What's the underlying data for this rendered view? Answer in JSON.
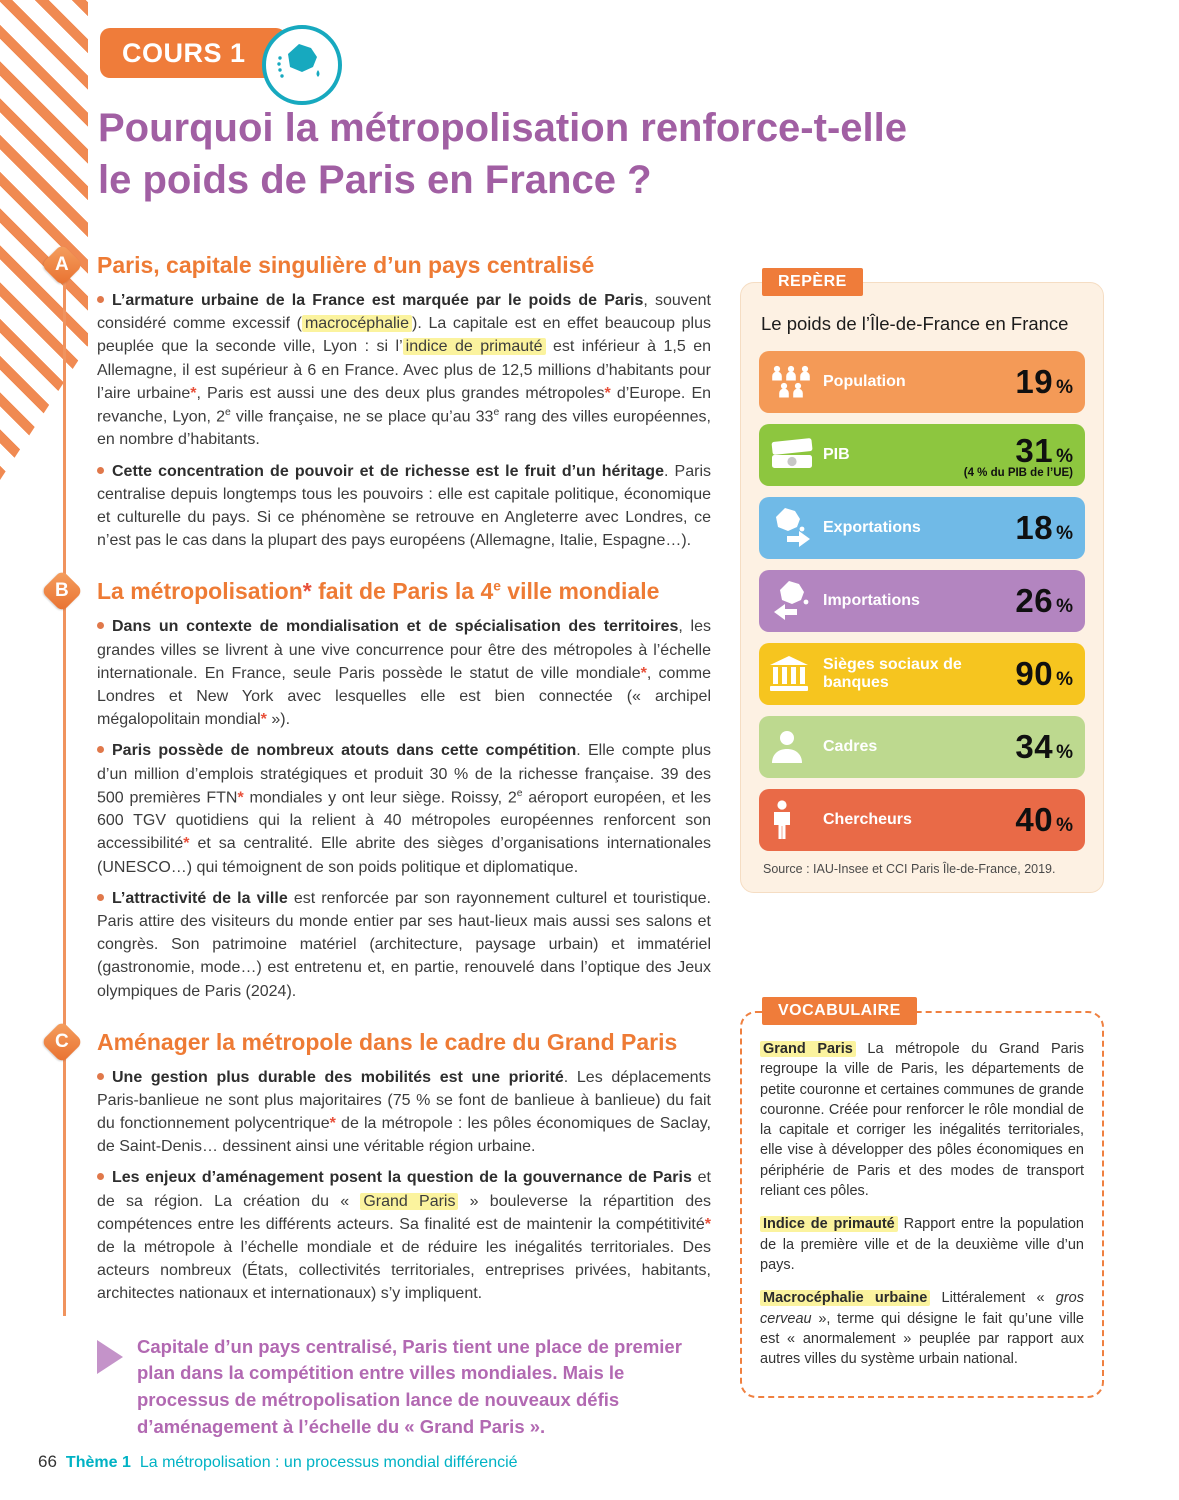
{
  "page": {
    "badge": "COURS 1",
    "title_html": "Pourquoi la métropolisation renforce-t-elle<br>le poids de Paris en France ?",
    "accent_orange": "#ee7b35",
    "title_purple": "#a15fa3",
    "highlight_yellow": "#fbf39e",
    "teal": "#00b2c4"
  },
  "sections": [
    {
      "letter": "A",
      "heading": "Paris, capitale singulière d’un pays centralisé",
      "paragraphs": [
        "<b>L’armature urbaine de la France est marquée par le poids de Paris</b>, souvent considéré comme excessif (<span class='hl'>macrocéphalie</span>). La capitale est en effet beaucoup plus peuplée que la seconde ville, Lyon : si l’<span class='hl'>indice de primauté</span> est inférieur à 1,5 en Allemagne, il est supérieur à 6 en France. Avec plus de 12,5 millions d’habitants pour l’aire urbaine<span class='ast'>*</span>, Paris est aussi une des deux plus grandes métropoles<span class='ast'>*</span> d’Europe. En revanche, Lyon, 2<sup>e</sup> ville française, ne se place qu’au 33<sup>e</sup> rang des villes européennes, en nombre d’habitants.",
        "<b>Cette concentration de pouvoir et de richesse est le fruit d’un héritage</b>. Paris centralise depuis longtemps tous les pouvoirs : elle est capitale politique, économique et culturelle du pays. Si ce phénomène se retrouve en Angleterre avec Londres, ce n’est pas le cas dans la plupart des pays européens (Allemagne, Italie, Espagne…)."
      ]
    },
    {
      "letter": "B",
      "heading": "La métropolisation<span class='ast'>*</span> fait de Paris la 4<sup>e</sup> ville mondiale",
      "paragraphs": [
        "<b>Dans un contexte de mondialisation et de spécialisation des territoires</b>, les grandes villes se livrent à une vive concurrence pour être des métropoles à l’échelle internationale. En France, seule Paris possède le statut de ville mondiale<span class='ast'>*</span>, comme Londres et New York avec lesquelles elle est bien connectée (« archipel mégalopolitain mondial<span class='ast'>*</span> »).",
        "<b>Paris possède de nombreux atouts dans cette compétition</b>. Elle compte plus d’un million d’emplois stratégiques et produit 30 % de la richesse française. 39 des 500 premières FTN<span class='ast'>*</span> mondiales y ont leur siège. Roissy, 2<sup>e</sup> aéroport européen, et les 600 TGV quotidiens qui la relient à 40 métropoles européennes renforcent son accessibilité<span class='ast'>*</span> et sa centralité. Elle abrite des sièges d’organisations internationales (UNESCO…) qui témoignent de son poids politique et diplomatique.",
        "<b>L’attractivité de la ville</b> est renforcée par son rayonnement culturel et touristique. Paris attire des visiteurs du monde entier par ses haut-lieux mais aussi ses salons et congrès. Son patrimoine matériel (architecture, paysage urbain) et immatériel (gastronomie, mode…) est entretenu et, en partie, renouvelé dans l’optique des Jeux olympiques de Paris (2024)."
      ]
    },
    {
      "letter": "C",
      "heading": "Aménager la métropole dans le cadre du Grand Paris",
      "paragraphs": [
        "<b>Une gestion plus durable des mobilités est une priorité</b>. Les déplacements Paris-banlieue ne sont plus majoritaires (75 % se font de banlieue à banlieue) du fait du fonctionnement polycentrique<span class='ast'>*</span> de la métropole : les pôles économiques de Saclay, de Saint-Denis… dessinent ainsi une véritable région urbaine.",
        "<b>Les enjeux d’aménagement posent la question de la gouvernance de Paris</b> et de sa région. La création du « <span class='hl'>Grand Paris</span> » bouleverse la répartition des compétences entre les différents acteurs. Sa finalité est de maintenir la compétitivité<span class='ast'>*</span> de la métropole à l’échelle mondiale et de réduire les inégalités territoriales. Des acteurs nombreux (États, collectivités territoriales, entreprises privées, habitants, architectes nationaux et internationaux) s’y impliquent."
      ]
    }
  ],
  "summary": {
    "text": "Capitale d’un pays centralisé, Paris tient une place de premier plan dans la compétition entre villes mondiales. Mais le processus de métropolisation lance de nouveaux défis d’aménagement à l’échelle du « Grand Paris »."
  },
  "repere": {
    "badge": "REPÈRE",
    "title": "Le poids de l’Île-de-France en France",
    "stats": [
      {
        "icon": "population-icon",
        "label": "Population",
        "value": "19",
        "unit": "%",
        "color": "#f49a57"
      },
      {
        "icon": "money-icon",
        "label": "PIB",
        "value": "31",
        "unit": "%",
        "note": "(4 % du PIB de l’UE)",
        "color": "#8dc63f"
      },
      {
        "icon": "export-icon",
        "label": "Exportations",
        "value": "18",
        "unit": "%",
        "color": "#70bae7"
      },
      {
        "icon": "import-icon",
        "label": "Importations",
        "value": "26",
        "unit": "%",
        "color": "#b385c0"
      },
      {
        "icon": "bank-icon",
        "label": "Sièges sociaux de banques",
        "value": "90",
        "unit": "%",
        "color": "#f6c51f"
      },
      {
        "icon": "executive-icon",
        "label": "Cadres",
        "value": "34",
        "unit": "%",
        "color": "#bdd98f"
      },
      {
        "icon": "researcher-icon",
        "label": "Chercheurs",
        "value": "40",
        "unit": "%",
        "color": "#e96a47"
      }
    ],
    "source": "Source : IAU-Insee et CCI Paris Île-de-France, 2019."
  },
  "vocabulaire": {
    "badge": "VOCABULAIRE",
    "entries": [
      "<span class='term'>Grand Paris</span> La métropole du Grand Paris regroupe la ville de Paris, les départements de petite couronne et certaines communes de grande couronne. Créée pour renforcer le rôle mondial de la capitale et corriger les inégalités territoriales, elle vise à développer des pôles économiques en périphérie de Paris et des modes de transport reliant ces pôles.",
      "<span class='term'>Indice de primauté</span> Rapport entre la population de la première ville et de la deuxième ville d’un pays.",
      "<span class='term'>Macrocéphalie urbaine</span> Littéralement « <i>gros cerveau</i> », terme qui désigne le fait qu’une ville est « anormalement » peuplée par rapport aux autres villes du système urbain national."
    ]
  },
  "footer": {
    "page_number": "66",
    "theme_label": "Thème 1",
    "theme_text": "La métropolisation : un processus mondial différencié"
  }
}
